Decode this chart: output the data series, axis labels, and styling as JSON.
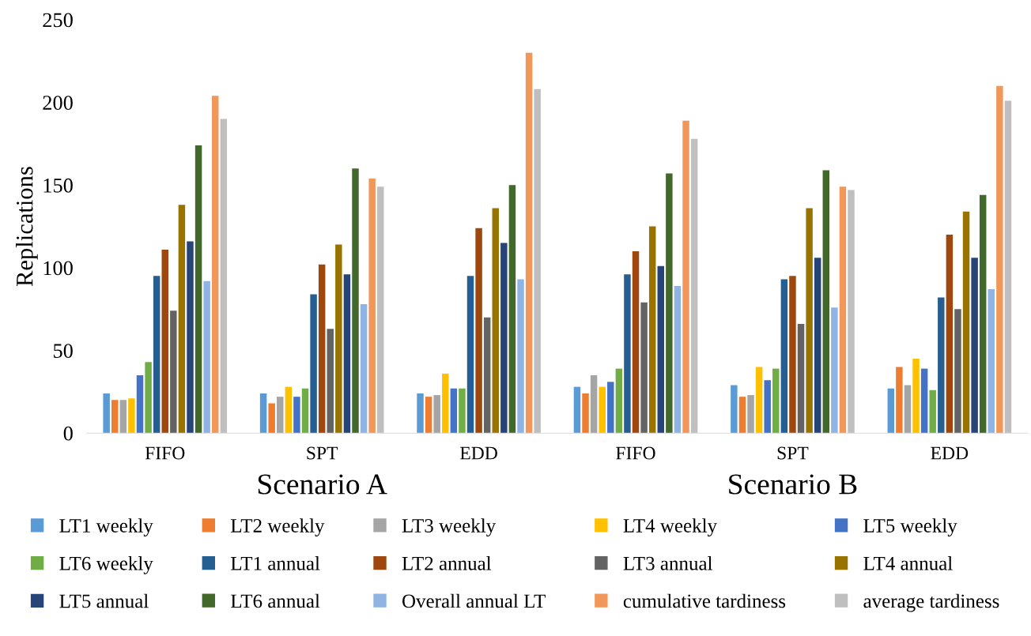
{
  "chart_data": {
    "type": "bar",
    "ylabel": "Replications",
    "categories": [
      "FIFO",
      "SPT",
      "EDD",
      "FIFO",
      "SPT",
      "EDD"
    ],
    "ylim": [
      0,
      250
    ],
    "yticks": [
      0,
      50,
      100,
      150,
      200,
      250
    ],
    "grid": false,
    "legend": "bottom",
    "annotations": [
      "Scenario A",
      "Scenario B"
    ],
    "series": [
      {
        "name": "LT1 weekly",
        "color": "#5b9bd5",
        "values": [
          24,
          24,
          24,
          28,
          29,
          27
        ]
      },
      {
        "name": "LT2 weekly",
        "color": "#ed7d31",
        "values": [
          20,
          18,
          22,
          24,
          22,
          40
        ]
      },
      {
        "name": "LT3 weekly",
        "color": "#a5a5a5",
        "values": [
          20,
          22,
          23,
          35,
          23,
          29
        ]
      },
      {
        "name": "LT4 weekly",
        "color": "#ffc000",
        "values": [
          21,
          28,
          36,
          28,
          40,
          45
        ]
      },
      {
        "name": "LT5 weekly",
        "color": "#4472c4",
        "values": [
          35,
          22,
          27,
          31,
          32,
          39
        ]
      },
      {
        "name": "LT6 weekly",
        "color": "#70ad47",
        "values": [
          43,
          27,
          27,
          39,
          39,
          26
        ]
      },
      {
        "name": "LT1 annual",
        "color": "#255e91",
        "values": [
          95,
          84,
          95,
          96,
          93,
          82
        ]
      },
      {
        "name": "LT2 annual",
        "color": "#9e480e",
        "values": [
          111,
          102,
          124,
          110,
          95,
          120
        ]
      },
      {
        "name": "LT3 annual",
        "color": "#636363",
        "values": [
          74,
          63,
          70,
          79,
          66,
          75
        ]
      },
      {
        "name": "LT4 annual",
        "color": "#997300",
        "values": [
          138,
          114,
          136,
          125,
          136,
          134
        ]
      },
      {
        "name": "LT5 annual",
        "color": "#264478",
        "values": [
          116,
          96,
          115,
          101,
          106,
          106
        ]
      },
      {
        "name": "LT6 annual",
        "color": "#43682b",
        "values": [
          174,
          160,
          150,
          157,
          159,
          144
        ]
      },
      {
        "name": "Overall annual LT",
        "color": "#8fb4e3",
        "values": [
          92,
          78,
          93,
          89,
          76,
          87
        ]
      },
      {
        "name": "cumulative tardiness",
        "color": "#f1975a",
        "values": [
          204,
          154,
          230,
          189,
          149,
          210
        ]
      },
      {
        "name": "average tardiness",
        "color": "#bfbfbf",
        "values": [
          190,
          149,
          208,
          178,
          147,
          201
        ]
      }
    ]
  }
}
